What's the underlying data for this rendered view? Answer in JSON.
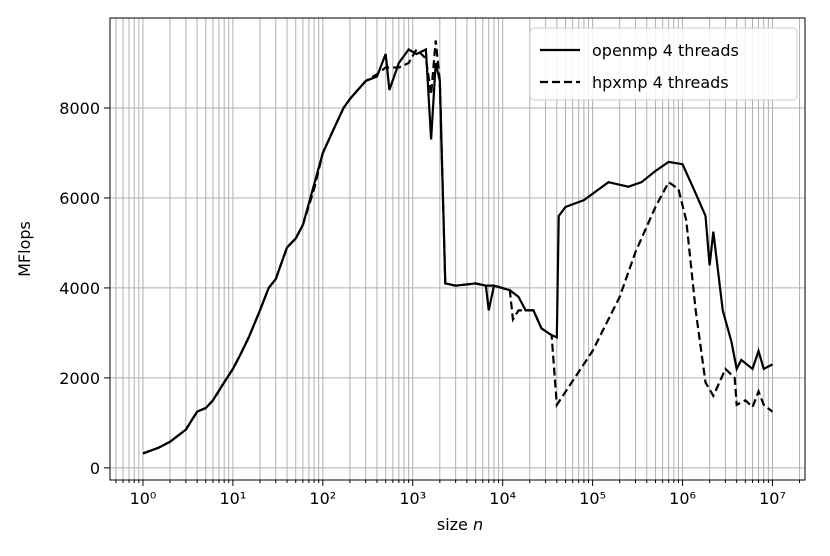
{
  "chart_data": {
    "type": "line",
    "xlabel": "size",
    "xlabel_var": "n",
    "ylabel": "MFlops",
    "xscale": "log",
    "minor_grid": true,
    "grid": true,
    "legend": "upper right",
    "xlim": [
      0.43,
      23000000
    ],
    "ylim": [
      -270,
      10000
    ],
    "xticks": [
      {
        "value": 1,
        "label": "10⁰"
      },
      {
        "value": 10,
        "label": "10¹"
      },
      {
        "value": 100,
        "label": "10²"
      },
      {
        "value": 1000,
        "label": "10³"
      },
      {
        "value": 10000,
        "label": "10⁴"
      },
      {
        "value": 100000,
        "label": "10⁵"
      },
      {
        "value": 1000000,
        "label": "10⁶"
      },
      {
        "value": 10000000,
        "label": "10⁷"
      }
    ],
    "yticks": [
      0,
      2000,
      4000,
      6000,
      8000
    ],
    "series": [
      {
        "name": "openmp 4 threads",
        "color": "#000000",
        "dash": "solid",
        "x": [
          1,
          1.5,
          2,
          3,
          4,
          5,
          6,
          8,
          10,
          12,
          15,
          20,
          25,
          30,
          40,
          50,
          60,
          80,
          100,
          130,
          170,
          200,
          300,
          400,
          500,
          550,
          700,
          900,
          1100,
          1400,
          1600,
          1800,
          2000,
          2300,
          3000,
          5000,
          6500,
          7000,
          8000,
          12000,
          15000,
          18000,
          22000,
          27000,
          35000,
          40000,
          42000,
          50000,
          80000,
          150000,
          250000,
          350000,
          500000,
          700000,
          1000000,
          1400000,
          1800000,
          2000000,
          2200000,
          2800000,
          3500000,
          4000000,
          4500000,
          6000000,
          7000000,
          8000000,
          10000000
        ],
        "values": [
          320,
          450,
          580,
          850,
          1250,
          1330,
          1500,
          1900,
          2200,
          2500,
          2900,
          3500,
          4000,
          4200,
          4900,
          5100,
          5400,
          6300,
          7000,
          7500,
          8000,
          8200,
          8600,
          8700,
          9200,
          8400,
          9000,
          9300,
          9200,
          9300,
          7300,
          9000,
          8600,
          4100,
          4050,
          4100,
          4050,
          3500,
          4050,
          3950,
          3800,
          3500,
          3500,
          3100,
          2950,
          2900,
          5600,
          5800,
          5950,
          6350,
          6250,
          6350,
          6600,
          6800,
          6750,
          6100,
          5600,
          4500,
          5250,
          3500,
          2800,
          2200,
          2400,
          2200,
          2600,
          2200,
          2300
        ]
      },
      {
        "name": "hpxmp 4 threads",
        "color": "#000000",
        "dash": "dashed",
        "x": [
          1,
          1.5,
          2,
          3,
          4,
          5,
          6,
          8,
          10,
          12,
          15,
          20,
          25,
          30,
          40,
          50,
          60,
          80,
          100,
          130,
          170,
          200,
          300,
          400,
          500,
          700,
          900,
          1100,
          1400,
          1600,
          1800,
          2000,
          2300,
          3000,
          5000,
          6500,
          8000,
          12000,
          13000,
          15000,
          18000,
          22000,
          27000,
          35000,
          40000,
          100000,
          200000,
          300000,
          500000,
          700000,
          900000,
          1100000,
          1400000,
          1800000,
          2200000,
          3000000,
          3800000,
          4000000,
          5000000,
          6000000,
          7000000,
          8000000,
          10000000
        ],
        "values": [
          320,
          450,
          580,
          850,
          1250,
          1330,
          1500,
          1900,
          2200,
          2500,
          2900,
          3500,
          4000,
          4200,
          4900,
          5100,
          5400,
          6200,
          7000,
          7500,
          8000,
          8200,
          8600,
          8750,
          8900,
          8900,
          9000,
          9300,
          9100,
          8300,
          9500,
          8600,
          4100,
          4050,
          4100,
          4050,
          4050,
          3950,
          3300,
          3500,
          3500,
          3500,
          3100,
          2950,
          1400,
          2600,
          3800,
          4800,
          5800,
          6350,
          6200,
          5500,
          3500,
          1900,
          1600,
          2200,
          2000,
          1400,
          1500,
          1350,
          1700,
          1400,
          1250
        ]
      }
    ]
  }
}
